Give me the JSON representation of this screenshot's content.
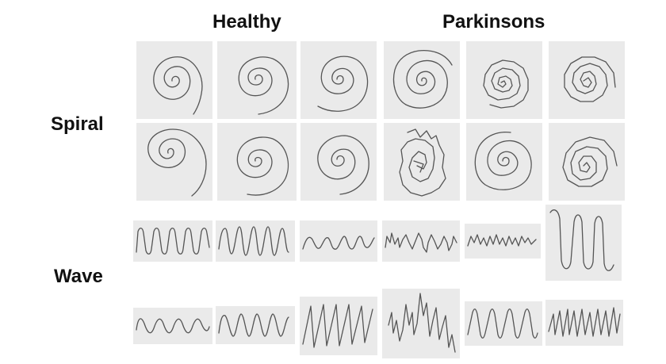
{
  "columns": {
    "healthy_label": "Healthy",
    "parkinsons_label": "Parkinsons"
  },
  "rows": {
    "spiral_label": "Spiral",
    "wave_label": "Wave"
  }
}
